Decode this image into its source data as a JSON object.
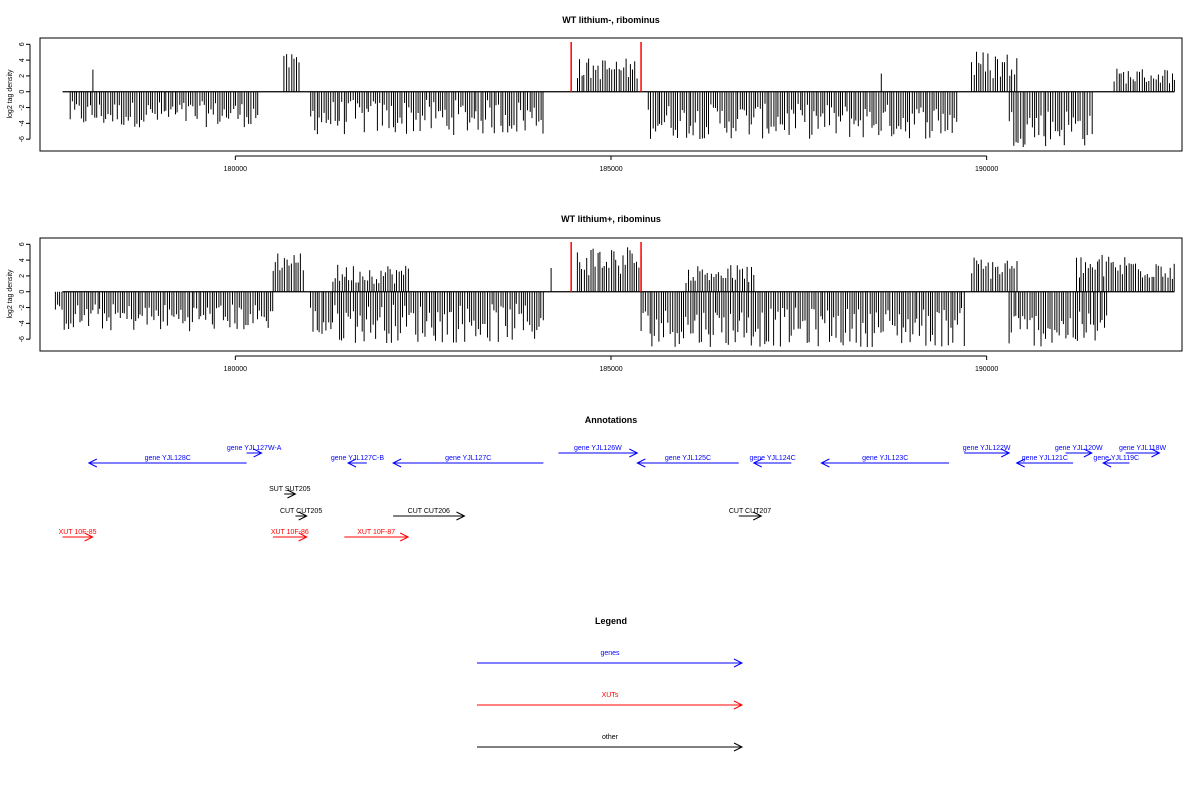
{
  "chart_data": [
    {
      "type": "bar",
      "title": "WT lithium-, ribominus",
      "ylabel": "log2 tag density",
      "xlim": [
        177400,
        192600
      ],
      "ylim": [
        -7.5,
        6.8
      ],
      "x_ticks": [
        180000,
        185000,
        190000
      ],
      "x_tick_labels": [
        "180000",
        "185000",
        "190000"
      ],
      "y_ticks": [
        -6,
        -4,
        -2,
        0,
        2,
        4,
        6
      ],
      "y_tick_labels": [
        "-6",
        "-4",
        "-2",
        "0",
        "2",
        "4",
        "6"
      ],
      "baseline": 0,
      "signal_regions": [
        {
          "x_start": 177800,
          "x_end": 180300,
          "y_min": -4.5,
          "y_max": -1.2
        },
        {
          "x_start": 178100,
          "x_end": 178100,
          "y_min": 2.8,
          "y_max": 2.8
        },
        {
          "x_start": 180650,
          "x_end": 180850,
          "y_min": 2.5,
          "y_max": 4.8
        },
        {
          "x_start": 181000,
          "x_end": 184100,
          "y_min": -5.5,
          "y_max": -1.0
        },
        {
          "x_start": 184550,
          "x_end": 185350,
          "y_min": 1.5,
          "y_max": 4.3
        },
        {
          "x_start": 185500,
          "x_end": 189600,
          "y_min": -6.0,
          "y_max": -1.5
        },
        {
          "x_start": 188600,
          "x_end": 188600,
          "y_min": 2.3,
          "y_max": 2.3
        },
        {
          "x_start": 189800,
          "x_end": 190400,
          "y_min": 1.5,
          "y_max": 5.3
        },
        {
          "x_start": 190300,
          "x_end": 191400,
          "y_min": -7.0,
          "y_max": -2.0
        },
        {
          "x_start": 191700,
          "x_end": 192500,
          "y_min": 1.0,
          "y_max": 3.0
        }
      ],
      "markers": [
        184470,
        185400
      ],
      "marker_color": "#ff0000"
    },
    {
      "type": "bar",
      "title": "WT lithium+, ribominus",
      "ylabel": "log2 tag density",
      "xlim": [
        177400,
        192600
      ],
      "ylim": [
        -7.5,
        6.8
      ],
      "x_ticks": [
        180000,
        185000,
        190000
      ],
      "x_tick_labels": [
        "180000",
        "185000",
        "190000"
      ],
      "y_ticks": [
        -6,
        -4,
        -2,
        0,
        2,
        4,
        6
      ],
      "y_tick_labels": [
        "-6",
        "-4",
        "-2",
        "0",
        "2",
        "4",
        "6"
      ],
      "baseline": 0,
      "signal_regions": [
        {
          "x_start": 177600,
          "x_end": 180500,
          "y_min": -5.0,
          "y_max": -1.5
        },
        {
          "x_start": 180500,
          "x_end": 180900,
          "y_min": 2.5,
          "y_max": 5.2
        },
        {
          "x_start": 181000,
          "x_end": 184100,
          "y_min": -6.5,
          "y_max": -1.5
        },
        {
          "x_start": 181300,
          "x_end": 182300,
          "y_min": 1.0,
          "y_max": 3.5
        },
        {
          "x_start": 184200,
          "x_end": 184200,
          "y_min": 3.0,
          "y_max": 3.0
        },
        {
          "x_start": 184550,
          "x_end": 185400,
          "y_min": 2.0,
          "y_max": 6.0
        },
        {
          "x_start": 185400,
          "x_end": 189700,
          "y_min": -7.0,
          "y_max": -2.0
        },
        {
          "x_start": 186000,
          "x_end": 186900,
          "y_min": 1.0,
          "y_max": 3.5
        },
        {
          "x_start": 189800,
          "x_end": 190400,
          "y_min": 1.5,
          "y_max": 4.5
        },
        {
          "x_start": 190300,
          "x_end": 191600,
          "y_min": -7.0,
          "y_max": -2.5
        },
        {
          "x_start": 191200,
          "x_end": 192500,
          "y_min": 1.5,
          "y_max": 4.8
        }
      ],
      "markers": [
        184470,
        185400
      ],
      "marker_color": "#ff0000"
    }
  ],
  "annotations": {
    "title": "Annotations",
    "xlim": [
      177400,
      192600
    ],
    "items": [
      {
        "label": "gene YJL128C",
        "start": 178050,
        "end": 180150,
        "strand": "-",
        "row": 1,
        "kind": "gene"
      },
      {
        "label": "gene YJL127W-A",
        "start": 180150,
        "end": 180350,
        "strand": "+",
        "row": 0,
        "kind": "gene"
      },
      {
        "label": "gene YJL127C-B",
        "start": 181500,
        "end": 181750,
        "strand": "-",
        "row": 1,
        "kind": "gene"
      },
      {
        "label": "gene YJL127C",
        "start": 182100,
        "end": 184100,
        "strand": "-",
        "row": 1,
        "kind": "gene"
      },
      {
        "label": "gene YJL126W",
        "start": 184300,
        "end": 185350,
        "strand": "+",
        "row": 0,
        "kind": "gene"
      },
      {
        "label": "gene YJL125C",
        "start": 185350,
        "end": 186700,
        "strand": "-",
        "row": 1,
        "kind": "gene"
      },
      {
        "label": "gene YJL124C",
        "start": 186900,
        "end": 187400,
        "strand": "-",
        "row": 1,
        "kind": "gene"
      },
      {
        "label": "gene YJL123C",
        "start": 187800,
        "end": 189500,
        "strand": "-",
        "row": 1,
        "kind": "gene"
      },
      {
        "label": "gene YJL122W",
        "start": 189700,
        "end": 190300,
        "strand": "+",
        "row": 0,
        "kind": "gene"
      },
      {
        "label": "gene YJL121C",
        "start": 190400,
        "end": 191150,
        "strand": "-",
        "row": 1,
        "kind": "gene"
      },
      {
        "label": "gene YJL120W",
        "start": 191050,
        "end": 191400,
        "strand": "+",
        "row": 0,
        "kind": "gene"
      },
      {
        "label": "gene YJL119C",
        "start": 191550,
        "end": 191900,
        "strand": "-",
        "row": 1,
        "kind": "gene"
      },
      {
        "label": "gene YJL118W",
        "start": 191850,
        "end": 192300,
        "strand": "+",
        "row": 0,
        "kind": "gene"
      },
      {
        "label": "SUT SUT205",
        "start": 180650,
        "end": 180800,
        "strand": "+",
        "row": 2,
        "kind": "other"
      },
      {
        "label": "CUT CUT205",
        "start": 180800,
        "end": 180950,
        "strand": "+",
        "row": 3,
        "kind": "other"
      },
      {
        "label": "CUT CUT206",
        "start": 182100,
        "end": 183050,
        "strand": "+",
        "row": 3,
        "kind": "other"
      },
      {
        "label": "CUT CUT207",
        "start": 186700,
        "end": 187000,
        "strand": "+",
        "row": 3,
        "kind": "other"
      },
      {
        "label": "XUT 10F-85",
        "start": 177700,
        "end": 178100,
        "strand": "+",
        "row": 4,
        "kind": "xut"
      },
      {
        "label": "XUT 10F-86",
        "start": 180500,
        "end": 180950,
        "strand": "+",
        "row": 4,
        "kind": "xut"
      },
      {
        "label": "XUT 10F-87",
        "start": 181450,
        "end": 182300,
        "strand": "+",
        "row": 4,
        "kind": "xut"
      }
    ]
  },
  "legend": {
    "title": "Legend",
    "entries": [
      {
        "label": "genes",
        "color": "#0000ff"
      },
      {
        "label": "XUTs",
        "color": "#ff0000"
      },
      {
        "label": "other",
        "color": "#000000"
      }
    ]
  },
  "colors": {
    "gene": "#0000ff",
    "xut": "#ff0000",
    "other": "#000000",
    "signal": "#000000",
    "marker": "#ff0000"
  }
}
